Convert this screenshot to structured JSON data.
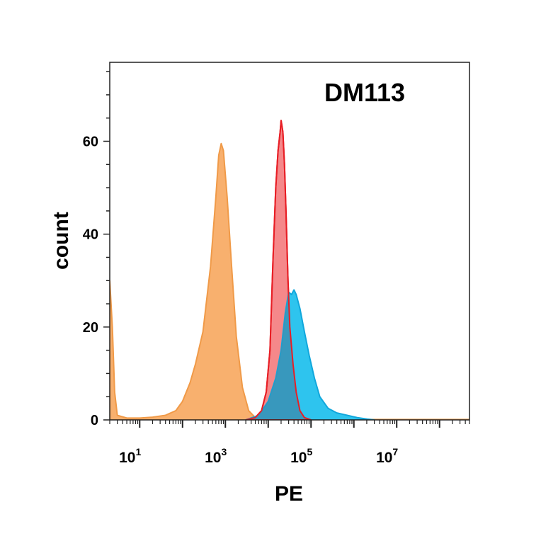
{
  "chart_data": {
    "type": "area",
    "title": "DM113",
    "xlabel": "PE",
    "ylabel": "count",
    "x_scale": "log10",
    "xlim": [
      2,
      500000000
    ],
    "ylim": [
      0,
      77
    ],
    "x_ticks": [
      {
        "value": 10,
        "base": "10",
        "exp": "1"
      },
      {
        "value": 1000,
        "base": "10",
        "exp": "3"
      },
      {
        "value": 100000,
        "base": "10",
        "exp": "5"
      },
      {
        "value": 10000000,
        "base": "10",
        "exp": "7"
      }
    ],
    "y_ticks": [
      0,
      20,
      40,
      60
    ],
    "grid": false,
    "legend": "none",
    "series": [
      {
        "fill": "#F8B06E",
        "stroke": "#F09A48",
        "points": [
          [
            2,
            30
          ],
          [
            2.3,
            20
          ],
          [
            2.6,
            6
          ],
          [
            3,
            1
          ],
          [
            5,
            0.4
          ],
          [
            10,
            0.4
          ],
          [
            20,
            0.6
          ],
          [
            40,
            1
          ],
          [
            70,
            2
          ],
          [
            100,
            4
          ],
          [
            150,
            8
          ],
          [
            200,
            12
          ],
          [
            300,
            19
          ],
          [
            450,
            33
          ],
          [
            600,
            48
          ],
          [
            700,
            57
          ],
          [
            800,
            59.5
          ],
          [
            900,
            58
          ],
          [
            1100,
            48
          ],
          [
            1400,
            33
          ],
          [
            1800,
            18
          ],
          [
            2500,
            7
          ],
          [
            3500,
            2
          ],
          [
            5000,
            0.5
          ],
          [
            10000,
            0.2
          ],
          [
            100000,
            0.1
          ],
          [
            500000000,
            0.1
          ]
        ]
      },
      {
        "fill": "#F5888A",
        "stroke": "#E81E25",
        "points": [
          [
            3000,
            0
          ],
          [
            5000,
            0.5
          ],
          [
            7000,
            2
          ],
          [
            9000,
            6
          ],
          [
            11000,
            15
          ],
          [
            13000,
            35
          ],
          [
            15000,
            50
          ],
          [
            17000,
            58
          ],
          [
            19000,
            62
          ],
          [
            20000,
            64.5
          ],
          [
            22000,
            62
          ],
          [
            24000,
            55
          ],
          [
            26000,
            45
          ],
          [
            29000,
            30
          ],
          [
            32000,
            20
          ],
          [
            38000,
            12
          ],
          [
            45000,
            6
          ],
          [
            55000,
            2
          ],
          [
            70000,
            0.5
          ],
          [
            100000,
            0
          ]
        ]
      },
      {
        "fill": "#2EC4EE",
        "stroke": "#10A7DC",
        "points": [
          [
            3000,
            0
          ],
          [
            6000,
            1
          ],
          [
            10000,
            4
          ],
          [
            15000,
            9
          ],
          [
            20000,
            15
          ],
          [
            25000,
            23
          ],
          [
            30000,
            27.5
          ],
          [
            35000,
            27
          ],
          [
            40000,
            28
          ],
          [
            45000,
            27
          ],
          [
            55000,
            24
          ],
          [
            70000,
            19
          ],
          [
            90000,
            14
          ],
          [
            120000,
            9
          ],
          [
            160000,
            5
          ],
          [
            250000,
            2.5
          ],
          [
            400000,
            1.5
          ],
          [
            700000,
            1
          ],
          [
            1200000,
            0.5
          ],
          [
            2000000,
            0.2
          ],
          [
            3000000,
            0
          ]
        ]
      }
    ],
    "overlap_fill": "#3A90B4"
  }
}
